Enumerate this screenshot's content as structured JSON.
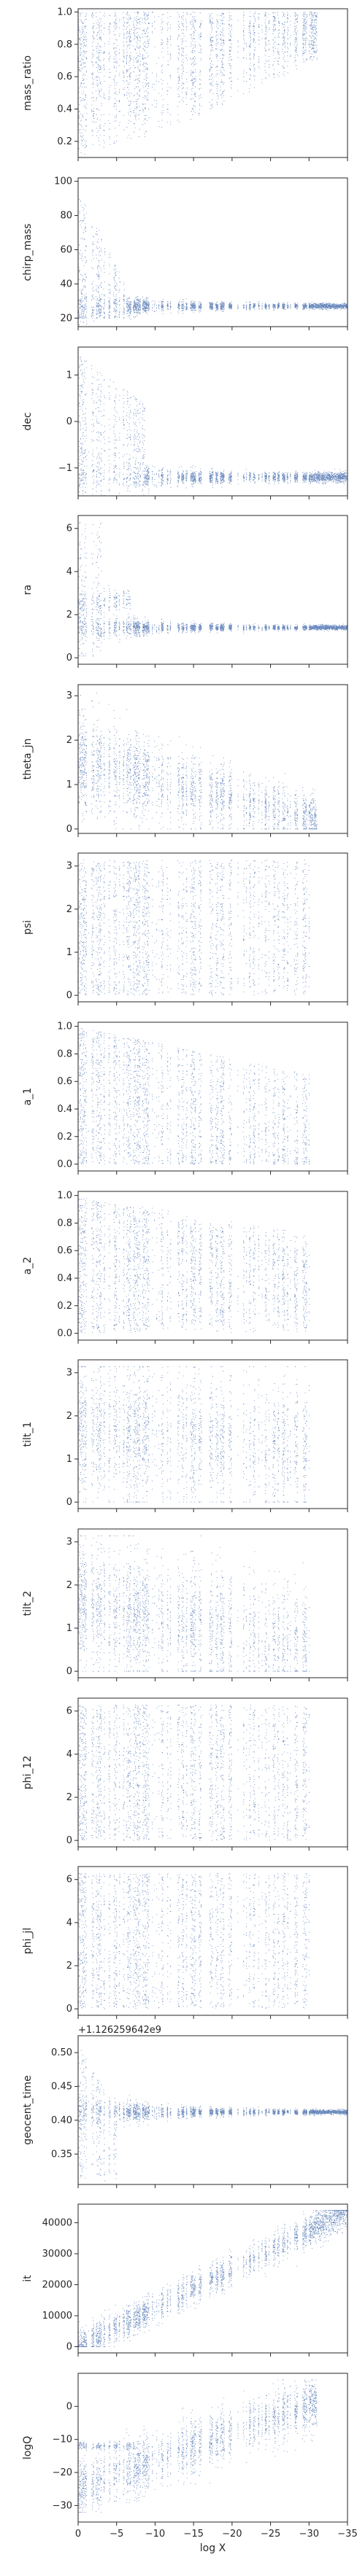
{
  "figure": {
    "marker_color": "#4c72b0",
    "axis_color": "#262626",
    "background": "#ffffff",
    "shared_xlabel": "log X",
    "shared_xticks": [
      "0",
      "−5",
      "−10",
      "−15",
      "−20",
      "−25",
      "−30",
      "−35"
    ]
  },
  "chart_data": [
    {
      "id": "mass_ratio",
      "type": "scatter",
      "title": "",
      "xlabel": "",
      "ylabel": "mass_ratio",
      "xlim": [
        0,
        -35
      ],
      "ylim": [
        0.1,
        1.02
      ],
      "yticks": [
        0.2,
        0.4,
        0.6,
        0.8,
        1.0
      ],
      "ytick_labels": [
        "0.2",
        "0.4",
        "0.6",
        "0.8",
        "1.0"
      ],
      "grid": false,
      "legend": "none",
      "description_of_trend": "broad scatter 0.1-1.0 near logX=0; lower bound rises to ~0.7 by logX=-30",
      "x_extent": [
        0.5,
        -31
      ],
      "n_points": 22000
    },
    {
      "id": "chirp_mass",
      "type": "scatter",
      "title": "",
      "xlabel": "",
      "ylabel": "chirp_mass",
      "xlim": [
        0,
        -35
      ],
      "ylim": [
        15,
        102
      ],
      "yticks": [
        20,
        40,
        60,
        80,
        100
      ],
      "ytick_labels": [
        "20",
        "40",
        "60",
        "80",
        "100"
      ],
      "grid": false,
      "legend": "none",
      "x_extent": [
        0.5,
        -36
      ],
      "n_points": 22000
    },
    {
      "id": "dec",
      "type": "scatter",
      "title": "",
      "xlabel": "",
      "ylabel": "dec",
      "xlim": [
        0,
        -35
      ],
      "ylim": [
        -1.6,
        1.6
      ],
      "yticks": [
        -1,
        0,
        1
      ],
      "ytick_labels": [
        "−1",
        "0",
        "1"
      ],
      "grid": false,
      "legend": "none",
      "x_extent": [
        0.5,
        -36
      ],
      "n_points": 22000
    },
    {
      "id": "ra",
      "type": "scatter",
      "title": "",
      "xlabel": "",
      "ylabel": "ra",
      "xlim": [
        0,
        -35
      ],
      "ylim": [
        -0.3,
        6.6
      ],
      "yticks": [
        0,
        2,
        4,
        6
      ],
      "ytick_labels": [
        "0",
        "2",
        "4",
        "6"
      ],
      "grid": false,
      "legend": "none",
      "x_extent": [
        0.5,
        -36
      ],
      "n_points": 22000
    },
    {
      "id": "theta_jn",
      "type": "scatter",
      "title": "",
      "xlabel": "",
      "ylabel": "theta_jn",
      "xlim": [
        0,
        -35
      ],
      "ylim": [
        -0.1,
        3.25
      ],
      "yticks": [
        0,
        1,
        2,
        3
      ],
      "ytick_labels": [
        "0",
        "1",
        "2",
        "3"
      ],
      "grid": false,
      "legend": "none",
      "x_extent": [
        0.5,
        -31
      ],
      "n_points": 22000
    },
    {
      "id": "psi",
      "type": "scatter",
      "title": "",
      "xlabel": "",
      "ylabel": "psi",
      "xlim": [
        0,
        -35
      ],
      "ylim": [
        -0.15,
        3.3
      ],
      "yticks": [
        0,
        1,
        2,
        3
      ],
      "ytick_labels": [
        "0",
        "1",
        "2",
        "3"
      ],
      "grid": false,
      "legend": "none",
      "x_extent": [
        0.5,
        -30
      ],
      "n_points": 22000
    },
    {
      "id": "a_1",
      "type": "scatter",
      "title": "",
      "xlabel": "",
      "ylabel": "a_1",
      "xlim": [
        0,
        -35
      ],
      "ylim": [
        -0.05,
        1.03
      ],
      "yticks": [
        0.0,
        0.2,
        0.4,
        0.6,
        0.8,
        1.0
      ],
      "ytick_labels": [
        "0.0",
        "0.2",
        "0.4",
        "0.6",
        "0.8",
        "1.0"
      ],
      "grid": false,
      "legend": "none",
      "x_extent": [
        0.5,
        -30
      ],
      "n_points": 22000
    },
    {
      "id": "a_2",
      "type": "scatter",
      "title": "",
      "xlabel": "",
      "ylabel": "a_2",
      "xlim": [
        0,
        -35
      ],
      "ylim": [
        -0.05,
        1.03
      ],
      "yticks": [
        0.0,
        0.2,
        0.4,
        0.6,
        0.8,
        1.0
      ],
      "ytick_labels": [
        "0.0",
        "0.2",
        "0.4",
        "0.6",
        "0.8",
        "1.0"
      ],
      "grid": false,
      "legend": "none",
      "x_extent": [
        0.5,
        -30
      ],
      "n_points": 22000
    },
    {
      "id": "tilt_1",
      "type": "scatter",
      "title": "",
      "xlabel": "",
      "ylabel": "tilt_1",
      "xlim": [
        0,
        -35
      ],
      "ylim": [
        -0.15,
        3.3
      ],
      "yticks": [
        0,
        1,
        2,
        3
      ],
      "ytick_labels": [
        "0",
        "1",
        "2",
        "3"
      ],
      "grid": false,
      "legend": "none",
      "x_extent": [
        0.5,
        -30
      ],
      "n_points": 22000
    },
    {
      "id": "tilt_2",
      "type": "scatter",
      "title": "",
      "xlabel": "",
      "ylabel": "tilt_2",
      "xlim": [
        0,
        -35
      ],
      "ylim": [
        -0.15,
        3.3
      ],
      "yticks": [
        0,
        1,
        2,
        3
      ],
      "ytick_labels": [
        "0",
        "1",
        "2",
        "3"
      ],
      "grid": false,
      "legend": "none",
      "x_extent": [
        0.5,
        -30
      ],
      "n_points": 22000
    },
    {
      "id": "phi_12",
      "type": "scatter",
      "title": "",
      "xlabel": "",
      "ylabel": "phi_12",
      "xlim": [
        0,
        -35
      ],
      "ylim": [
        -0.3,
        6.6
      ],
      "yticks": [
        0,
        2,
        4,
        6
      ],
      "ytick_labels": [
        "0",
        "2",
        "4",
        "6"
      ],
      "grid": false,
      "legend": "none",
      "x_extent": [
        0.5,
        -30
      ],
      "n_points": 22000
    },
    {
      "id": "phi_jl",
      "type": "scatter",
      "title": "",
      "xlabel": "",
      "ylabel": "phi_jl",
      "xlim": [
        0,
        -35
      ],
      "ylim": [
        -0.3,
        6.6
      ],
      "yticks": [
        0,
        2,
        4,
        6
      ],
      "ytick_labels": [
        "0",
        "2",
        "4",
        "6"
      ],
      "grid": false,
      "legend": "none",
      "x_extent": [
        0.5,
        -30
      ],
      "n_points": 22000
    },
    {
      "id": "geocent_time",
      "type": "scatter",
      "title": "",
      "xlabel": "",
      "ylabel": "geocent_time",
      "offset_text": "+1.126259642e9",
      "xlim": [
        0,
        -35
      ],
      "ylim": [
        0.305,
        0.525
      ],
      "yticks": [
        0.35,
        0.4,
        0.45,
        0.5
      ],
      "ytick_labels": [
        "0.35",
        "0.40",
        "0.45",
        "0.50"
      ],
      "grid": false,
      "legend": "none",
      "x_extent": [
        0.5,
        -36
      ],
      "n_points": 22000
    },
    {
      "id": "it",
      "type": "scatter",
      "title": "",
      "xlabel": "",
      "ylabel": "it",
      "xlim": [
        0,
        -35
      ],
      "ylim": [
        -2000,
        46000
      ],
      "yticks": [
        0,
        10000,
        20000,
        30000,
        40000
      ],
      "ytick_labels": [
        "0",
        "10000",
        "20000",
        "30000",
        "40000"
      ],
      "grid": false,
      "legend": "none",
      "x_extent": [
        0.5,
        -36
      ],
      "n_points": 22000
    },
    {
      "id": "logQ",
      "type": "scatter",
      "title": "",
      "xlabel": "log X",
      "ylabel": "logQ",
      "xlim": [
        0,
        -35
      ],
      "ylim": [
        -35,
        10
      ],
      "yticks": [
        -30,
        -20,
        -10,
        0
      ],
      "ytick_labels": [
        "−30",
        "−20",
        "−10",
        "0"
      ],
      "xticks": [
        0,
        -5,
        -10,
        -15,
        -20,
        -25,
        -30,
        -35
      ],
      "xtick_labels": [
        "0",
        "−5",
        "−10",
        "−15",
        "−20",
        "−25",
        "−30",
        "−35"
      ],
      "grid": false,
      "legend": "none",
      "x_extent": [
        0.5,
        -31
      ],
      "n_points": 22000
    }
  ]
}
